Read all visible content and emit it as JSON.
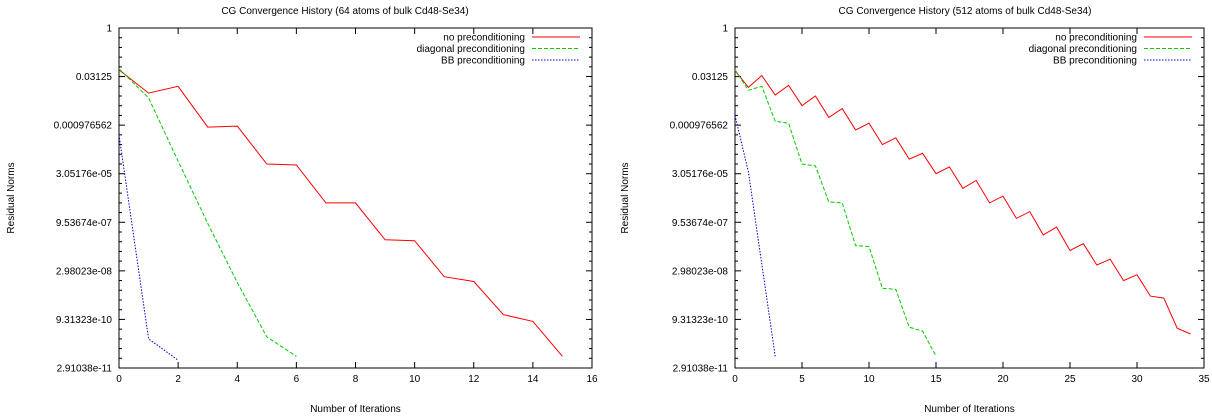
{
  "chart_data": [
    {
      "type": "line",
      "title": "CG Convergence History (64 atoms of bulk Cd48-Se34)",
      "xlabel": "Number of Iterations",
      "ylabel": "Residual Norms",
      "xlim": [
        0,
        16
      ],
      "ylim_log2": [
        -35,
        0
      ],
      "y_scale": "log",
      "legend": "top-right",
      "x_ticks": [
        "0",
        "2",
        "4",
        "6",
        "8",
        "10",
        "12",
        "14",
        "16"
      ],
      "y_ticks": [
        "1",
        "0.03125",
        "0.000976562",
        "3.05176e-05",
        "9.53674e-07",
        "2.98023e-08",
        "9.31323e-10",
        "2.91038e-11"
      ],
      "series": [
        {
          "name": "no preconditioning",
          "color": "#ff0000",
          "dash": "",
          "x": [
            0,
            1,
            2,
            3,
            4,
            5,
            6,
            7,
            8,
            9,
            10,
            11,
            12,
            13,
            14,
            15
          ],
          "log2_y": [
            -4.3,
            -6.7,
            -6.0,
            -10.2,
            -10.1,
            -14.0,
            -14.1,
            -18.0,
            -18.0,
            -21.8,
            -21.9,
            -25.6,
            -26.1,
            -29.5,
            -30.2,
            -33.8
          ]
        },
        {
          "name": "diagonal preconditioning",
          "color": "#00cc00",
          "dash": "4,2",
          "x": [
            0,
            1,
            2,
            3,
            4,
            5,
            6
          ],
          "log2_y": [
            -4.2,
            -7.2,
            -13.7,
            -20.1,
            -26.2,
            -31.8,
            -33.8
          ]
        },
        {
          "name": "BB preconditioning",
          "color": "#0000cc",
          "dash": "1.5,1.5",
          "x": [
            0,
            1,
            2
          ],
          "log2_y": [
            -11.0,
            -32.0,
            -34.2
          ]
        }
      ]
    },
    {
      "type": "line",
      "title": "CG Convergence History (512 atoms of bulk Cd48-Se34)",
      "xlabel": "Number of Iterations",
      "ylabel": "Residual Norms",
      "xlim": [
        0,
        35
      ],
      "ylim_log2": [
        -35,
        0
      ],
      "y_scale": "log",
      "legend": "top-right",
      "x_ticks": [
        "0",
        "5",
        "10",
        "15",
        "20",
        "25",
        "30",
        "35"
      ],
      "y_ticks": [
        "1",
        "0.03125",
        "0.000976562",
        "3.05176e-05",
        "9.53674e-07",
        "2.98023e-08",
        "9.31323e-10",
        "2.91038e-11"
      ],
      "series": [
        {
          "name": "no preconditioning",
          "color": "#ff0000",
          "dash": "",
          "x": [
            0,
            1,
            2,
            3,
            4,
            5,
            6,
            7,
            8,
            9,
            10,
            11,
            12,
            13,
            14,
            15,
            16,
            17,
            18,
            19,
            20,
            21,
            22,
            23,
            24,
            25,
            26,
            27,
            28,
            29,
            30,
            31,
            32,
            33,
            34
          ],
          "log2_y": [
            -4.4,
            -6.1,
            -4.9,
            -6.9,
            -5.9,
            -8.0,
            -7.0,
            -9.2,
            -8.3,
            -10.5,
            -9.8,
            -12.0,
            -11.3,
            -13.5,
            -12.9,
            -15.0,
            -14.3,
            -16.5,
            -15.7,
            -18.0,
            -17.3,
            -19.6,
            -18.9,
            -21.3,
            -20.5,
            -22.9,
            -22.2,
            -24.4,
            -23.8,
            -26.0,
            -25.4,
            -27.6,
            -27.8,
            -30.9,
            -31.5
          ]
        },
        {
          "name": "diagonal preconditioning",
          "color": "#00cc00",
          "dash": "4,2",
          "x": [
            0,
            1,
            2,
            3,
            4,
            5,
            6,
            7,
            8,
            9,
            10,
            11,
            12,
            13,
            14,
            15
          ],
          "log2_y": [
            -4.3,
            -6.4,
            -6.0,
            -9.6,
            -9.8,
            -14.0,
            -14.2,
            -17.9,
            -18.0,
            -22.4,
            -22.5,
            -26.8,
            -26.9,
            -30.8,
            -31.2,
            -33.8
          ]
        },
        {
          "name": "BB preconditioning",
          "color": "#0000cc",
          "dash": "1.5,1.5",
          "x": [
            0,
            1,
            2,
            3
          ],
          "log2_y": [
            -9.0,
            -14.8,
            -24.3,
            -33.8
          ]
        }
      ]
    }
  ]
}
